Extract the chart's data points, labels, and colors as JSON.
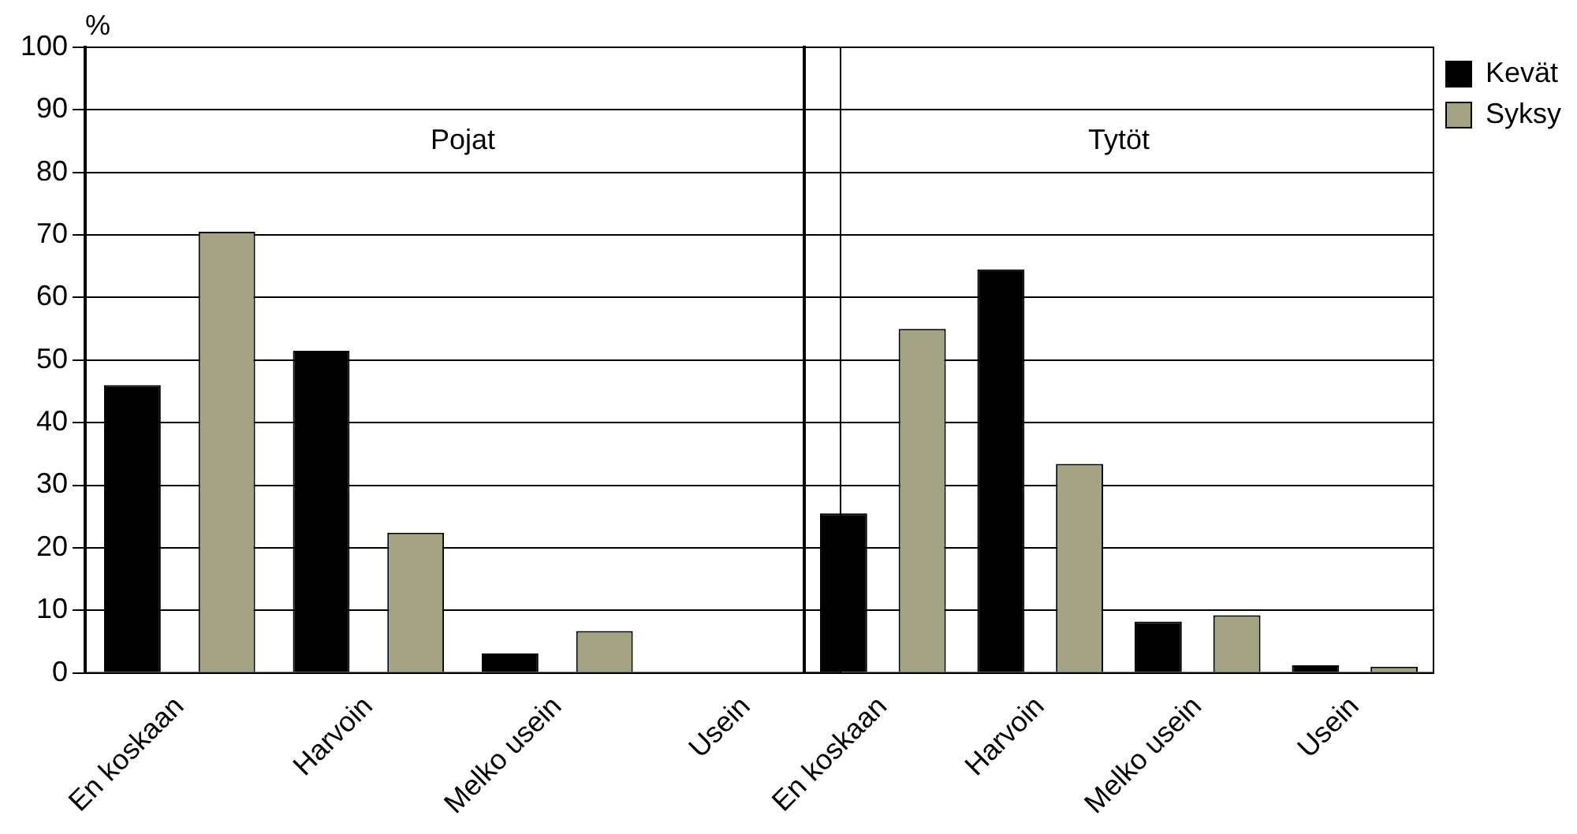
{
  "chart_data": [
    {
      "type": "bar",
      "ylabel": "%",
      "categories": [
        "En koskaan",
        "Harvoin",
        "Melko usein",
        "Usein"
      ],
      "series": [
        {
          "color": "#000000",
          "values": [
            46,
            51.5,
            3.1,
            0
          ]
        },
        {
          "color": "#a3a383",
          "values": [
            70.5,
            22.4,
            6.7,
            0
          ]
        }
      ],
      "annotations": [
        "Pojat"
      ],
      "ylim": [
        0,
        100
      ],
      "yticks": [
        0,
        10,
        20,
        30,
        40,
        50,
        60,
        70,
        80,
        90,
        100
      ],
      "grid": "y"
    },
    {
      "type": "bar",
      "categories": [
        "En koskaan",
        "Harvoin",
        "Melko usein",
        "Usein"
      ],
      "series": [
        {
          "name": "Kevät",
          "color": "#000000",
          "values": [
            25.5,
            64.5,
            8.2,
            1.2
          ]
        },
        {
          "name": "Syksy",
          "color": "#a3a383",
          "values": [
            55,
            33.4,
            9.2,
            1
          ]
        }
      ],
      "annotations": [
        "Tytöt"
      ],
      "ylim": [
        0,
        100
      ],
      "yticks": [
        0,
        10,
        20,
        30,
        40,
        50,
        60,
        70,
        80,
        90,
        100
      ],
      "tick_labels": "x",
      "grid": "y",
      "legend": "top right"
    }
  ]
}
